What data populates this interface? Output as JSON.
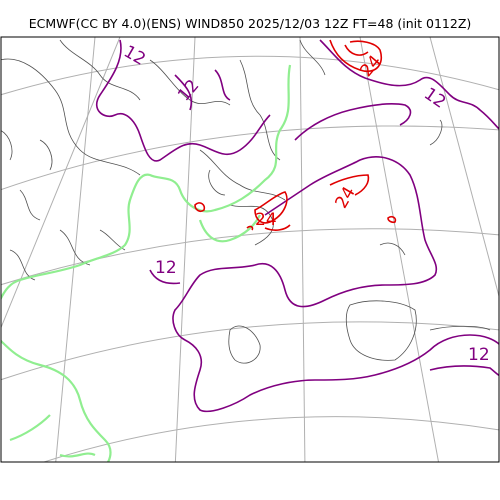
{
  "title": "ECMWF(CC BY 4.0)(ENS) WIND850 2025/12/03 12Z FT=48 (init 0112Z)",
  "colors": {
    "coast": "#505050",
    "grid": "#b0b0b0",
    "contour12": "#800080",
    "contour24": "#e00000",
    "isoline_green": "#90ee90",
    "frame": "#000000"
  },
  "contour_labels": {
    "purple_12_center": "12",
    "purple_12_right": "12",
    "purple_12_topright": "12",
    "purple_12_topleft": "12",
    "purple_12_japan": "12",
    "red_24_center": "24",
    "red_24_east": "24",
    "red_24_top": "24"
  }
}
